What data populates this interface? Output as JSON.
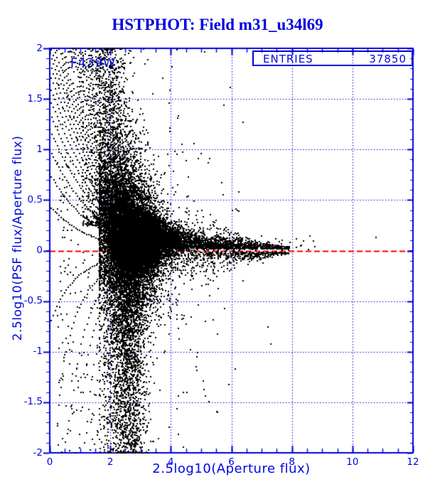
{
  "figure": {
    "background": "#ffffff"
  },
  "chart_data": {
    "type": "scatter",
    "title": "HSTPHOT: Field m31_u34l69",
    "filter_label": "F439W",
    "entries": {
      "label": "ENTRIES",
      "value": "37850"
    },
    "xlabel": "2.5log10(Aperture flux)",
    "ylabel": "2.5log10(PSF flux/Aperture flux)",
    "xlim": [
      0,
      12
    ],
    "ylim": [
      -2,
      2
    ],
    "x_axis": {
      "tick_values": [
        0,
        2,
        4,
        6,
        8,
        10,
        12
      ],
      "tick_labels": [
        "0",
        "2",
        "4",
        "6",
        "8",
        "10",
        "12"
      ],
      "minor_step": 0.5
    },
    "y_axis": {
      "tick_values": [
        2,
        1.5,
        1,
        0.5,
        0,
        -0.5,
        -1,
        -1.5,
        -2
      ],
      "tick_labels": [
        "2",
        "1.5",
        "1",
        "0.5",
        "0",
        "-0.5",
        "-1",
        "-1.5",
        "-2"
      ],
      "minor_step": 0.1
    },
    "grid": {
      "x_lines": [
        2,
        4,
        6,
        8,
        10
      ],
      "y_lines": [
        1.5,
        1,
        0.5,
        -0.5,
        -1,
        -1.5
      ],
      "style": "dotted"
    },
    "reference_line": {
      "y": 0,
      "style": "dashed",
      "color": "#ee0000"
    },
    "colors": {
      "axis": "#0000dd",
      "grid": "#0000dd",
      "points": "#000000",
      "title": "#0000e0",
      "text": "#0008dd"
    },
    "description": "PSF vs aperture photometry residuals: quantization fan curves at low flux, dense core near x=2-3.5, points converge to y~+0.05-0.1 for bright stars out to x~8.7, red dashed reference at y=0.",
    "n_points_displayed": 37850,
    "seed": 1337,
    "components": [
      {
        "kind": "fan",
        "a_start": 1.0,
        "a_ratio": 1.058,
        "a_steps": 130,
        "k_step": 0.5,
        "k_max": 50,
        "k_solid": 6,
        "weight_pow": 0.85,
        "y_cut": 0.018,
        "thin_x0": 2.0,
        "thin_gain": 2.2,
        "neg_extra": 0.45
      },
      {
        "kind": "cloud",
        "n": 15000,
        "x_mean": 2.72,
        "x_sd": 0.52,
        "x_clip": [
          1.65,
          4.7
        ],
        "mu_a": 0.5,
        "mu_x0": 1.0,
        "mu_tau": 1.25,
        "sig_base": 0.055,
        "sig_a": 0.3,
        "sig_x0": 1.7,
        "sig_tau": 1.1,
        "wide_frac": 0.3,
        "wide_mult": 2.8
      },
      {
        "kind": "plume",
        "n": 3000,
        "x_mean": 2.55,
        "x_sd": 0.33,
        "x_clip": [
          1.8,
          3.7
        ],
        "y_top": 0.2,
        "y_span": 2.25,
        "pow": 1.6
      },
      {
        "kind": "upper",
        "n": 1400,
        "x_mean": 2.0,
        "x_sd": 0.42,
        "x_clip": [
          1.1,
          3.3
        ],
        "y_base": 0.25,
        "y_span": 1.8,
        "pow": 2.4,
        "thin_x0": 2.3,
        "thin_gain": 2.0
      },
      {
        "kind": "band",
        "n": 2600,
        "x_start": 3.25,
        "x_tau": 0.8,
        "x_max": 9.0,
        "mu_base": 0.035,
        "mu_a": 0.5,
        "mu_x0": 1.5,
        "mu_tau": 1.35,
        "sig_base": 0.018,
        "sig_a": 0.1,
        "sig_x0": 3.0,
        "sig_tau": 1.8,
        "below_frac": 0.04
      },
      {
        "kind": "sparse",
        "n": 420,
        "x_min": 0.25,
        "x_tau": 2.2,
        "x_max": 6.5
      }
    ],
    "extra_points": [
      [
        6.2,
        0.4
      ],
      [
        5.75,
        0.55
      ],
      [
        5.5,
        0.3
      ],
      [
        6.55,
        0.12
      ],
      [
        6.8,
        0.1
      ],
      [
        7.0,
        0.14
      ],
      [
        7.2,
        0.09
      ],
      [
        7.45,
        0.12
      ],
      [
        7.7,
        0.1
      ],
      [
        7.95,
        0.08
      ],
      [
        8.15,
        0.12
      ],
      [
        8.4,
        0.1
      ],
      [
        8.6,
        0.14
      ],
      [
        8.72,
        0.09
      ],
      [
        10.78,
        0.13
      ],
      [
        7.05,
        -0.13
      ],
      [
        6.4,
        -0.3
      ],
      [
        7.3,
        -0.92
      ],
      [
        5.9,
        -1.33
      ],
      [
        5.55,
        -1.6
      ],
      [
        5.15,
        -0.7
      ],
      [
        4.85,
        -1.05
      ],
      [
        4.4,
        -1.4
      ],
      [
        3.95,
        -1.75
      ],
      [
        4.1,
        0.55
      ],
      [
        3.9,
        0.33
      ],
      [
        4.35,
        0.28
      ],
      [
        4.75,
        -0.28
      ],
      [
        5.3,
        -0.45
      ],
      [
        6.0,
        0.08
      ],
      [
        6.3,
        0.06
      ]
    ]
  }
}
